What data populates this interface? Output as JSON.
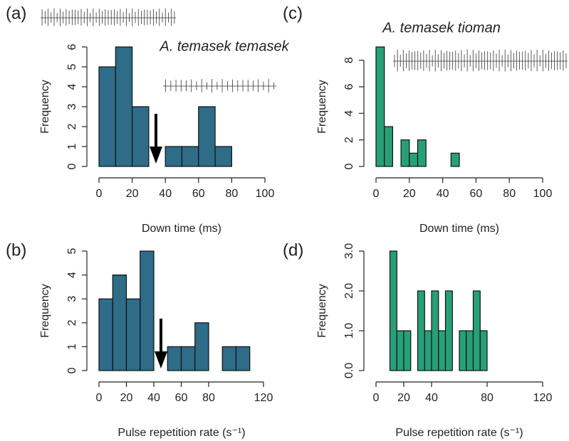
{
  "chart_data": [
    {
      "type": "histogram",
      "panel_label": "(a)",
      "title": "A. temasek temasek",
      "x_label": "Down time (ms)",
      "y_label": "Frequency",
      "color": "#2e6c88",
      "bins": [
        0,
        10,
        20,
        30,
        40,
        50,
        60,
        70,
        80,
        90,
        100
      ],
      "counts": [
        5,
        6,
        3,
        0,
        1,
        1,
        3,
        1,
        0,
        0
      ],
      "xlim": [
        0,
        100
      ],
      "xticks": [
        0,
        20,
        40,
        60,
        80,
        100
      ],
      "ylim": [
        0,
        6
      ],
      "yticks": [
        0,
        1,
        2,
        3,
        4,
        5,
        6
      ]
    },
    {
      "type": "histogram",
      "panel_label": "(b)",
      "x_label": "Pulse repetition rate (s⁻¹)",
      "y_label": "Frequency",
      "color": "#2e6c88",
      "bins": [
        0,
        10,
        20,
        30,
        40,
        50,
        60,
        70,
        80,
        90,
        100,
        110
      ],
      "counts": [
        3,
        4,
        3,
        5,
        0,
        1,
        1,
        2,
        0,
        1,
        1
      ],
      "xlim": [
        0,
        120
      ],
      "xticks": [
        0,
        20,
        40,
        60,
        80,
        120
      ],
      "ylim": [
        0,
        5
      ],
      "yticks": [
        0,
        1,
        2,
        3,
        4,
        5
      ]
    },
    {
      "type": "histogram",
      "panel_label": "(c)",
      "title": "A. temasek tioman",
      "x_label": "Down time (ms)",
      "y_label": "Frequency",
      "color": "#27a07a",
      "bins": [
        0,
        5,
        10,
        15,
        20,
        25,
        30,
        35,
        40,
        45,
        50
      ],
      "counts": [
        9,
        3,
        0,
        2,
        1,
        2,
        0,
        0,
        0,
        1
      ],
      "xlim": [
        0,
        100
      ],
      "xticks": [
        0,
        20,
        40,
        60,
        80,
        100
      ],
      "ylim": [
        0,
        9
      ],
      "yticks": [
        0,
        2,
        4,
        6,
        8
      ]
    },
    {
      "type": "histogram",
      "panel_label": "(d)",
      "x_label": "Pulse repetition rate (s⁻¹)",
      "y_label": "Frequency",
      "color": "#27a07a",
      "bins": [
        10,
        15,
        20,
        25,
        30,
        35,
        40,
        45,
        50,
        55,
        60,
        65,
        70,
        75,
        80
      ],
      "counts": [
        3,
        1,
        1,
        0,
        2,
        1,
        2,
        1,
        2,
        0,
        1,
        1,
        2,
        1
      ],
      "xlim": [
        0,
        120
      ],
      "xticks": [
        0,
        20,
        40,
        80,
        120
      ],
      "ylim": [
        0,
        3
      ],
      "yticks": [
        {
          "value": 0,
          "label": "0.0"
        },
        {
          "value": 1,
          "label": "1.0"
        },
        {
          "value": 2,
          "label": "2.0"
        },
        {
          "value": 3,
          "label": "3.0"
        }
      ]
    }
  ]
}
